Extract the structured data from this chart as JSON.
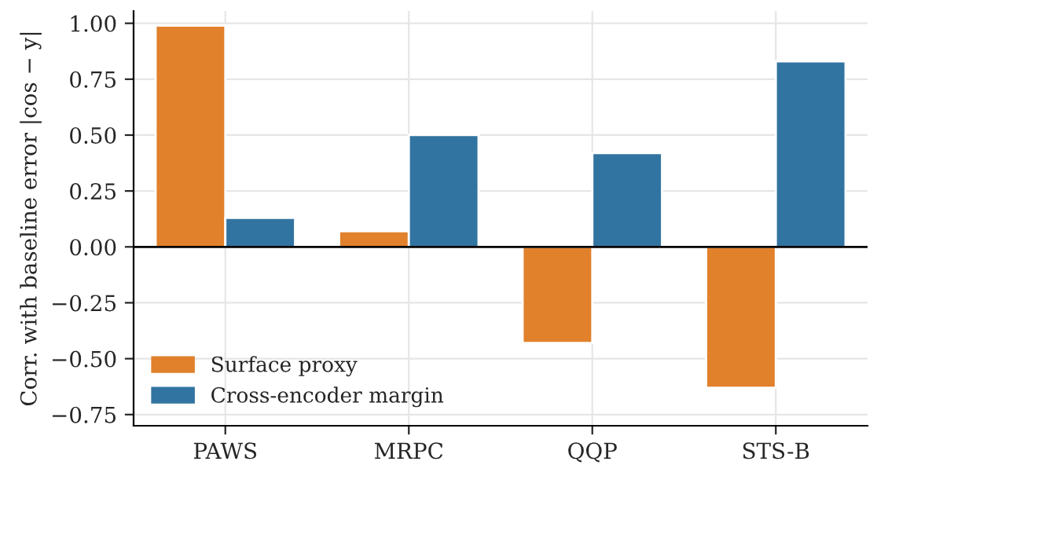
{
  "chart_data": {
    "type": "bar",
    "ylabel": "Corr. with baseline error |cos − y|",
    "categories": [
      "PAWS",
      "MRPC",
      "QQP",
      "STS-B"
    ],
    "series": [
      {
        "name": "Surface proxy",
        "color": "#e1812c",
        "values": [
          0.99,
          0.07,
          -0.43,
          -0.63
        ]
      },
      {
        "name": "Cross-encoder margin",
        "color": "#3274a1",
        "values": [
          0.13,
          0.5,
          0.42,
          0.83
        ]
      }
    ],
    "ylim": [
      -0.8,
      1.055
    ],
    "yticks": [
      {
        "value": -0.75,
        "label": "−0.75"
      },
      {
        "value": -0.5,
        "label": "−0.50"
      },
      {
        "value": -0.25,
        "label": "−0.25"
      },
      {
        "value": 0,
        "label": "0.00"
      },
      {
        "value": 0.25,
        "label": "0.25"
      },
      {
        "value": 0.5,
        "label": "0.50"
      },
      {
        "value": 0.75,
        "label": "0.75"
      },
      {
        "value": 1.0,
        "label": "1.00"
      }
    ],
    "ref_lines": [
      {
        "axis": "y",
        "value": 0,
        "color": "#000000"
      }
    ],
    "grid": true,
    "legend": "lower left"
  }
}
